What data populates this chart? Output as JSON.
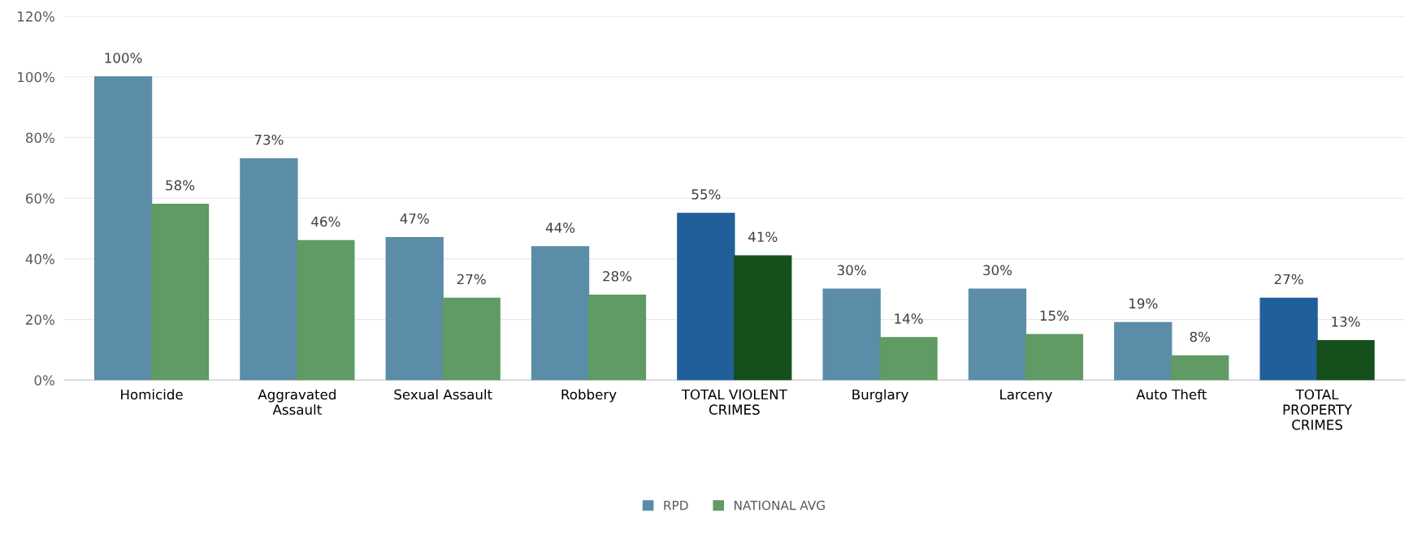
{
  "chart_data": {
    "type": "bar",
    "categories": [
      "Homicide",
      "Aggravated\nAssault",
      "Sexual Assault",
      "Robbery",
      "TOTAL VIOLENT\nCRIMES",
      "Burglary",
      "Larceny",
      "Auto Theft",
      "TOTAL\nPROPERTY\nCRIMES"
    ],
    "series": [
      {
        "name": "RPD",
        "color": "#5b8da8",
        "colors": [
          "#5b8da8",
          "#5b8da8",
          "#5b8da8",
          "#5b8da8",
          "#215f9a",
          "#5b8da8",
          "#5b8da8",
          "#5b8da8",
          "#215f9a"
        ],
        "values": [
          100,
          73,
          47,
          44,
          55,
          30,
          30,
          19,
          27
        ],
        "value_labels": [
          "100%",
          "73%",
          "47%",
          "44%",
          "55%",
          "30%",
          "30%",
          "19%",
          "27%"
        ]
      },
      {
        "name": "NATIONAL AVG",
        "color": "#5f9b63",
        "colors": [
          "#5f9b63",
          "#5f9b63",
          "#5f9b63",
          "#5f9b63",
          "#154f1c",
          "#5f9b63",
          "#5f9b63",
          "#5f9b63",
          "#154f1c"
        ],
        "values": [
          58,
          46,
          27,
          28,
          41,
          14,
          15,
          8,
          13
        ],
        "value_labels": [
          "58%",
          "46%",
          "27%",
          "28%",
          "41%",
          "14%",
          "15%",
          "8%",
          "13%"
        ]
      }
    ],
    "ylim": [
      0,
      120
    ],
    "yticks": [
      {
        "value": 0,
        "label": "0%"
      },
      {
        "value": 20,
        "label": "20%"
      },
      {
        "value": 40,
        "label": "40%"
      },
      {
        "value": 60,
        "label": "60%"
      },
      {
        "value": 80,
        "label": "80%"
      },
      {
        "value": 100,
        "label": "100%"
      },
      {
        "value": 120,
        "label": "120%"
      }
    ],
    "grid": "y",
    "legend": "bottom",
    "data_labels": true
  }
}
